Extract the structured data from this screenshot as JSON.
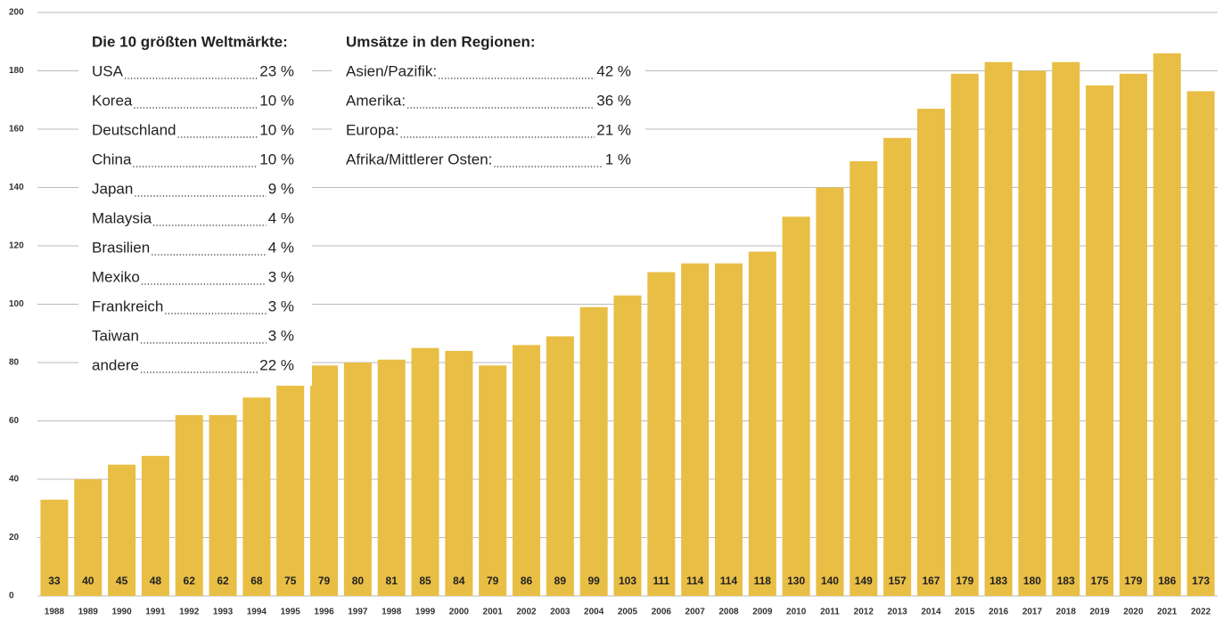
{
  "chart_data": {
    "type": "bar",
    "categories": [
      "1988",
      "1989",
      "1990",
      "1991",
      "1992",
      "1993",
      "1994",
      "1995",
      "1996",
      "1997",
      "1998",
      "1999",
      "2000",
      "2001",
      "2002",
      "2003",
      "2004",
      "2005",
      "2006",
      "2007",
      "2008",
      "2009",
      "2010",
      "2011",
      "2012",
      "2013",
      "2014",
      "2015",
      "2016",
      "2017",
      "2018",
      "2019",
      "2020",
      "2021",
      "2022"
    ],
    "values": [
      33,
      40,
      45,
      48,
      62,
      62,
      68,
      75,
      79,
      80,
      81,
      85,
      84,
      79,
      86,
      89,
      99,
      103,
      111,
      114,
      114,
      118,
      130,
      140,
      149,
      157,
      167,
      179,
      183,
      180,
      183,
      175,
      179,
      186,
      173
    ],
    "color": "#e8be45",
    "ylim": [
      0,
      200
    ],
    "yticks": [
      0,
      20,
      40,
      60,
      80,
      100,
      120,
      140,
      160,
      180,
      200
    ],
    "grid": true,
    "panels": [
      {
        "title": "Die 10 größten Weltmärkte:",
        "items": [
          {
            "label": "USA",
            "value": "23 %"
          },
          {
            "label": "Korea",
            "value": "10 %"
          },
          {
            "label": "Deutschland",
            "value": "10 %"
          },
          {
            "label": "China",
            "value": "10 %"
          },
          {
            "label": "Japan",
            "value": "9 %"
          },
          {
            "label": "Malaysia",
            "value": "4 %"
          },
          {
            "label": "Brasilien",
            "value": "4 %"
          },
          {
            "label": "Mexiko",
            "value": "3 %"
          },
          {
            "label": "Frankreich",
            "value": "3 %"
          },
          {
            "label": "Taiwan",
            "value": "3 %"
          },
          {
            "label": "andere",
            "value": "22 %"
          }
        ]
      },
      {
        "title": "Umsätze in den Regionen:",
        "items": [
          {
            "label": "Asien/Pazifik:",
            "value": "42 %"
          },
          {
            "label": "Amerika:",
            "value": "36 %"
          },
          {
            "label": "Europa:",
            "value": "21 %"
          },
          {
            "label": "Afrika/Mittlerer Osten:",
            "value": "1 %"
          }
        ]
      }
    ]
  }
}
